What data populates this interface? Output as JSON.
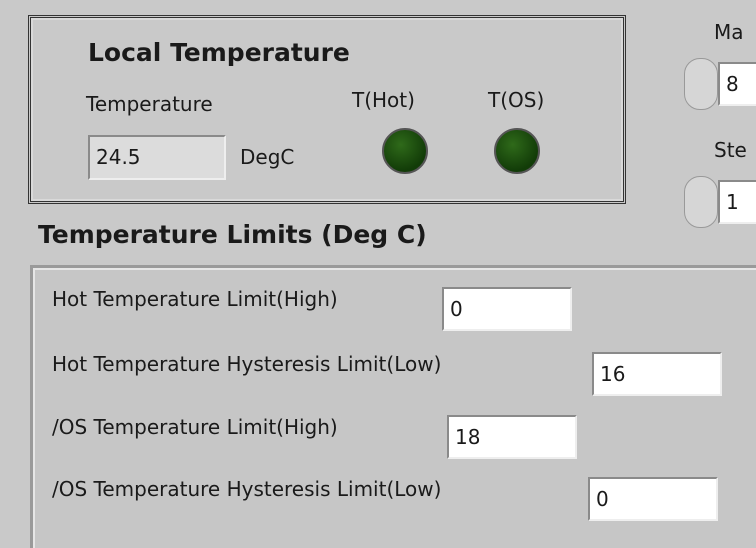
{
  "local_temperature": {
    "title": "Local Temperature",
    "temperature_label": "Temperature",
    "temperature_value": "24.5",
    "unit": "DegC",
    "indicators": [
      "T(Hot)",
      "T(OS)"
    ]
  },
  "side_controls": [
    {
      "label": "Ma",
      "value": "8"
    },
    {
      "label": "Ste",
      "value": "1"
    }
  ],
  "limits": {
    "title": "Temperature Limits (Deg C)",
    "rows": [
      {
        "label": "Hot Temperature Limit(High)",
        "value": "0"
      },
      {
        "label": "Hot Temperature Hysteresis Limit(Low)",
        "value": "16"
      },
      {
        "label": "/OS Temperature Limit(High)",
        "value": "18"
      },
      {
        "label": "/OS Temperature Hysteresis Limit(Low)",
        "value": "0"
      }
    ]
  }
}
